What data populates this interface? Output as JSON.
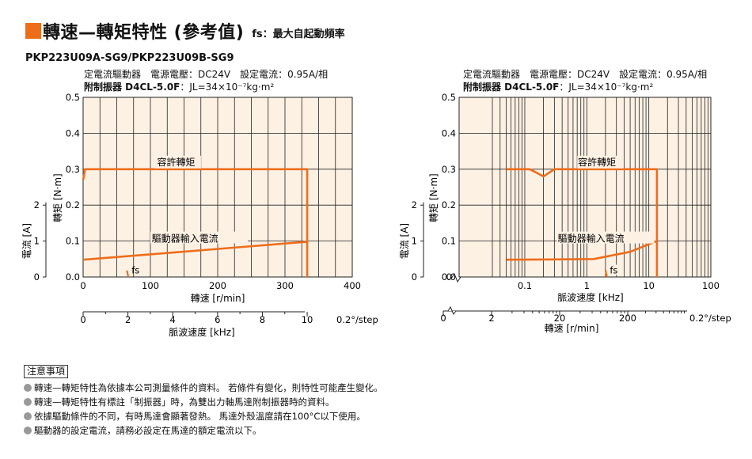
{
  "header": {
    "title": "轉速—轉矩特性 (參考值)",
    "subtitle": "fs：最大自起動頻率",
    "model": "PKP223U09A-SG9/PKP223U09B-SG9"
  },
  "colors": {
    "accent": "#ee6d1a",
    "plot_bg": "#fdf1e4",
    "grid": "#222222"
  },
  "charts": [
    {
      "cond_line1": "定電流驅動器　電源電壓：DC24V　設定電流：0.95A/相",
      "cond_line2_bold": "附制振器 D4CL-5.0F",
      "cond_line2_rest": "：JL=34×10⁻⁷kg·m²"
    },
    {
      "cond_line1": "定電流驅動器　電源電壓：DC24V　設定電流：0.95A/相",
      "cond_line2_bold": "附制振器 D4CL-5.0F",
      "cond_line2_rest": "：JL=34×10⁻⁷kg·m²"
    }
  ],
  "chart_data": [
    {
      "type": "line",
      "x_axis": {
        "label": "轉速 [r/min]",
        "range": [
          0,
          400
        ],
        "scale": "linear",
        "ticks": [
          0,
          100,
          200,
          300,
          400
        ]
      },
      "x_axis_2": {
        "label": "脈波速度 [kHz]",
        "range": [
          0,
          10.7
        ],
        "ticks": [
          0,
          2,
          4,
          6,
          8,
          10
        ],
        "end_label": "0.2°/step"
      },
      "y_axis_torque": {
        "label": "轉矩 [N·m]",
        "range": [
          0,
          0.5
        ],
        "ticks": [
          0,
          0.1,
          0.2,
          0.3,
          0.4,
          0.5
        ]
      },
      "y_axis_current": {
        "label": "電流 [A]",
        "range": [
          0,
          2.5
        ],
        "ticks": [
          0,
          1,
          2
        ]
      },
      "grid": true,
      "series": [
        {
          "name": "容許轉矩",
          "x": [
            0,
            3,
            6,
            333,
            333
          ],
          "y": [
            0.27,
            0.3,
            0.3,
            0.3,
            0
          ]
        },
        {
          "name": "驅動器輸入電流",
          "x": [
            0,
            333
          ],
          "y": [
            0.048,
            0.098
          ]
        },
        {
          "name": "fs",
          "x": [
            65,
            67
          ],
          "y": [
            0.018,
            0.002
          ]
        }
      ]
    },
    {
      "type": "line",
      "x_axis": {
        "label": "脈波速度 [kHz]",
        "range": [
          0.01,
          100
        ],
        "scale": "log",
        "ticks": [
          0.1,
          1,
          10,
          100
        ]
      },
      "x_axis_2": {
        "label": "轉速 [r/min]",
        "range": [
          0,
          400
        ],
        "ticks": [
          0,
          2,
          20,
          200
        ],
        "end_label": "0.2°/step"
      },
      "y_axis_torque": {
        "label": "轉矩 [N·m]",
        "range": [
          0,
          0.5
        ],
        "ticks": [
          0,
          0.1,
          0.2,
          0.3,
          0.4,
          0.5
        ]
      },
      "y_axis_current": {
        "label": "電流 [A]",
        "range": [
          0,
          2.5
        ],
        "ticks": [
          0,
          1,
          2
        ]
      },
      "grid": true,
      "series": [
        {
          "name": "容許轉矩",
          "x": [
            0.05,
            0.12,
            0.2,
            0.3,
            13.5,
            13.5
          ],
          "y": [
            0.3,
            0.3,
            0.28,
            0.3,
            0.3,
            0
          ]
        },
        {
          "name": "驅動器輸入電流",
          "x": [
            0.05,
            0.3,
            1.3,
            5,
            13.5
          ],
          "y": [
            0.048,
            0.049,
            0.05,
            0.07,
            0.1
          ]
        },
        {
          "name": "fs",
          "x": [
            2.0,
            2.1
          ],
          "y": [
            0.02,
            0.0
          ]
        }
      ]
    }
  ],
  "notes": {
    "heading": "注意事項",
    "items": [
      "轉速—轉矩特性為依據本公司測量條件的資料。 若條件有變化，則特性可能產生變化。",
      "轉速—轉矩特性有標註「制振器」時，為雙出力軸馬達附制振器時的資料。",
      "依據驅動條件的不同，有時馬達會顯著發熱。 馬達外殼溫度請在100°C以下使用。",
      "驅動器的設定電流，請務必設定在馬達的額定電流以下。"
    ]
  }
}
